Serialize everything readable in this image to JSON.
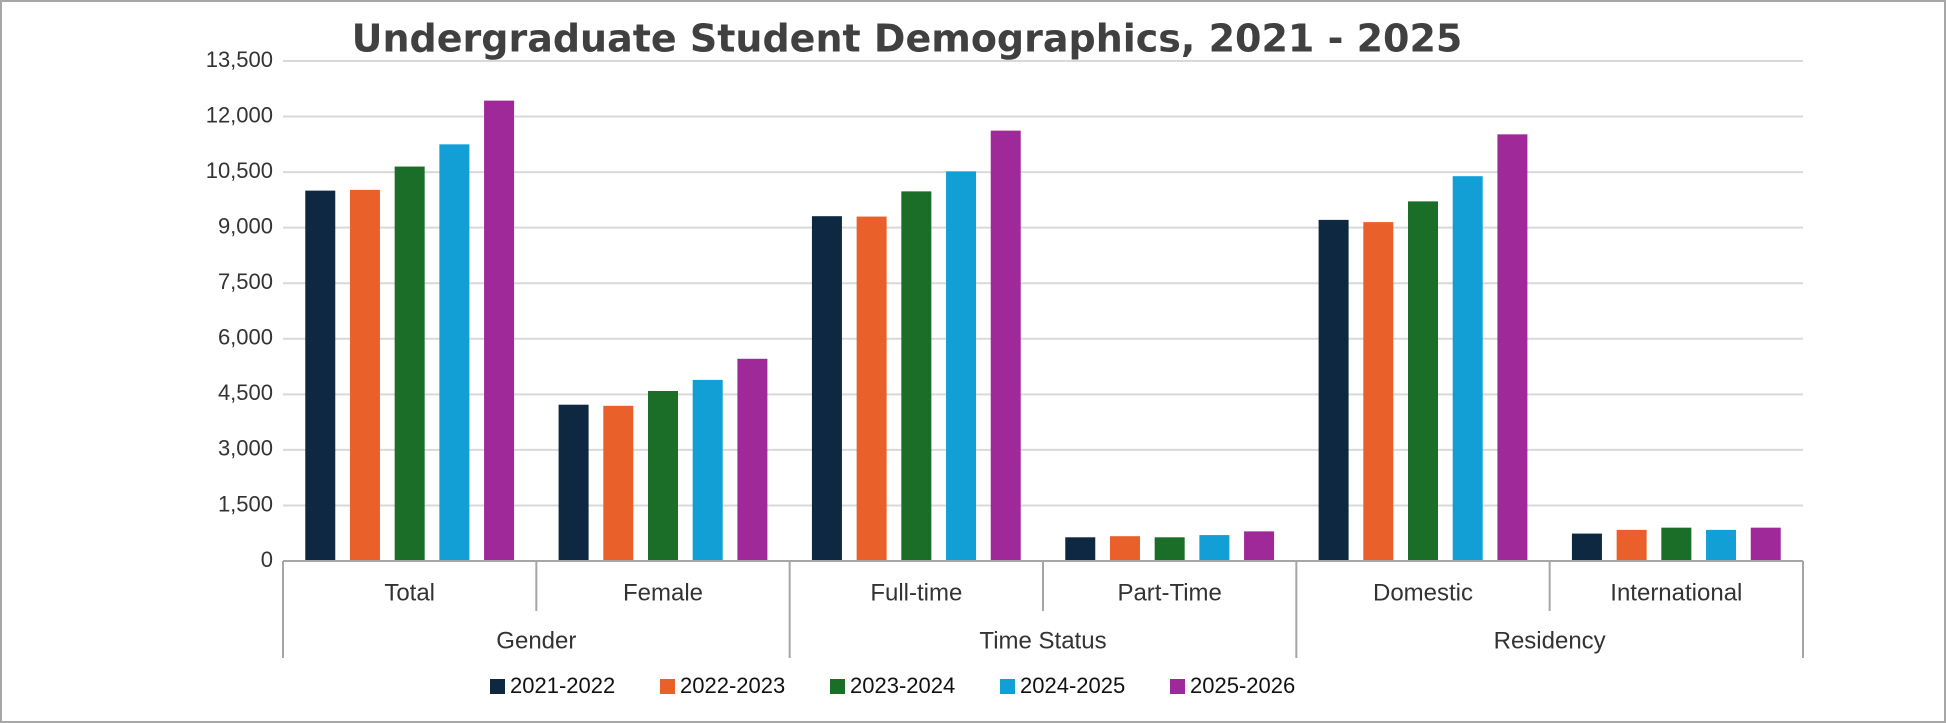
{
  "chart_data": {
    "type": "bar",
    "title": "Undergraduate Student Demographics, 2021 - 2025",
    "categories": [
      "Total",
      "Female",
      "Full-time",
      "Part-Time",
      "Domestic",
      "International"
    ],
    "groups": [
      {
        "name": "Gender",
        "count": 2
      },
      {
        "name": "Time Status",
        "count": 2
      },
      {
        "name": "Residency",
        "count": 2
      }
    ],
    "series": [
      {
        "name": "2021-2022",
        "color": "#0e2841",
        "values": [
          10000,
          4220,
          9310,
          640,
          9210,
          740
        ]
      },
      {
        "name": "2022-2023",
        "color": "#e9602b",
        "values": [
          10020,
          4190,
          9300,
          670,
          9150,
          840
        ]
      },
      {
        "name": "2023-2024",
        "color": "#1b6e27",
        "values": [
          10650,
          4590,
          9980,
          640,
          9710,
          900
        ]
      },
      {
        "name": "2024-2025",
        "color": "#119fd6",
        "values": [
          11250,
          4890,
          10520,
          700,
          10390,
          840
        ]
      },
      {
        "name": "2025-2026",
        "color": "#a0299a",
        "values": [
          12430,
          5460,
          11620,
          800,
          11520,
          900
        ]
      }
    ],
    "ylim": [
      0,
      13500
    ],
    "yticks": [
      0,
      {
        "value": 1500,
        "label": "1,500"
      },
      {
        "value": 3000,
        "label": "3,000"
      },
      {
        "value": 4500,
        "label": "4,500"
      },
      {
        "value": 6000,
        "label": "6,000"
      },
      {
        "value": 7500,
        "label": "7,500"
      },
      {
        "value": 9000,
        "label": "9,000"
      },
      {
        "value": 10500,
        "label": "10,500"
      },
      {
        "value": 12000,
        "label": "12,000"
      },
      {
        "value": 13500,
        "label": "13,500"
      }
    ],
    "grid": true,
    "legend": "bottom"
  }
}
